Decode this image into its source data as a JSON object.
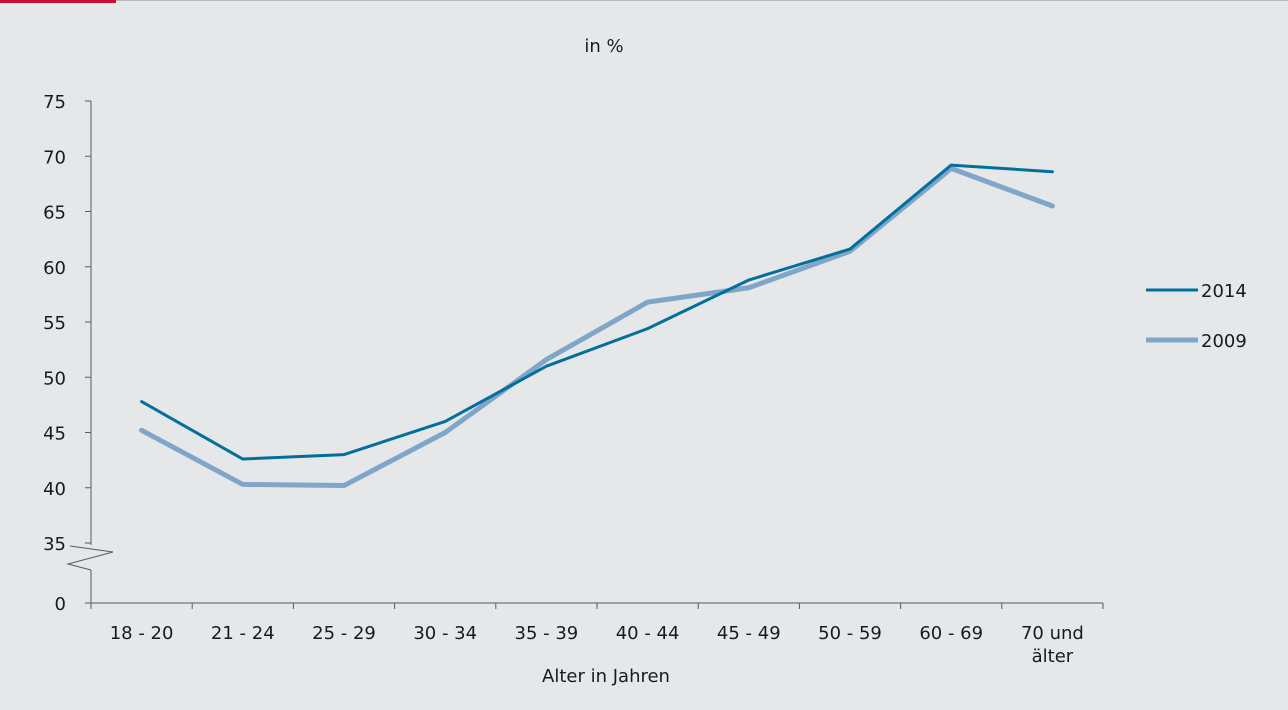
{
  "chart_data": {
    "type": "line",
    "title": "in %",
    "xlabel": "Alter in Jahren",
    "ylabel": "",
    "categories": [
      "18 - 20",
      "21 - 24",
      "25 - 29",
      "30 - 34",
      "35 - 39",
      "40 - 44",
      "45 - 49",
      "50 - 59",
      "60 - 69",
      "70 und älter"
    ],
    "category_lines": [
      [
        "18 - 20"
      ],
      [
        "21 - 24"
      ],
      [
        "25 - 29"
      ],
      [
        "30 - 34"
      ],
      [
        "35 - 39"
      ],
      [
        "40 - 44"
      ],
      [
        "45 - 49"
      ],
      [
        "50 - 59"
      ],
      [
        "60 - 69"
      ],
      [
        "70 und",
        "älter"
      ]
    ],
    "y_ticks": [
      0,
      35,
      40,
      45,
      50,
      55,
      60,
      65,
      70,
      75
    ],
    "ylim": [
      35,
      75
    ],
    "y_axis_break": true,
    "grid": false,
    "legend_position": "right",
    "series": [
      {
        "name": "2014",
        "color": "#00709b",
        "values": [
          47.8,
          42.6,
          43.0,
          46.0,
          51.0,
          54.4,
          58.8,
          61.6,
          69.2,
          68.6
        ]
      },
      {
        "name": "2009",
        "color": "#7fa6c9",
        "values": [
          45.2,
          40.3,
          40.2,
          45.0,
          51.6,
          56.8,
          58.1,
          61.4,
          68.9,
          65.5
        ]
      }
    ]
  }
}
